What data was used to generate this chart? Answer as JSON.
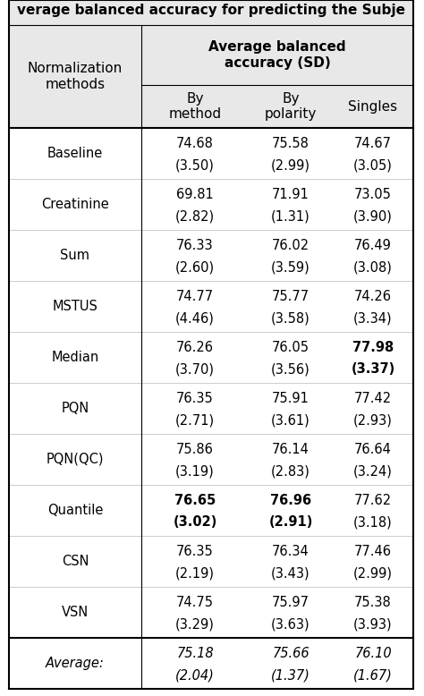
{
  "title": "verage balanced accuracy for predicting the Subje",
  "header_main": "Average balanced\naccuracy (SD)",
  "col0_header": "Normalization\nmethods",
  "subheaders": [
    "By\nmethod",
    "By\npolarity",
    "Singles"
  ],
  "rows": [
    {
      "label": "Baseline",
      "values": [
        "74.68",
        "75.58",
        "74.67"
      ],
      "sd": [
        "(3.50)",
        "(2.99)",
        "(3.05)"
      ],
      "bold": [
        false,
        false,
        false
      ],
      "bold_sd": [
        false,
        false,
        false
      ],
      "italic": false
    },
    {
      "label": "Creatinine",
      "values": [
        "69.81",
        "71.91",
        "73.05"
      ],
      "sd": [
        "(2.82)",
        "(1.31)",
        "(3.90)"
      ],
      "bold": [
        false,
        false,
        false
      ],
      "bold_sd": [
        false,
        false,
        false
      ],
      "italic": false
    },
    {
      "label": "Sum",
      "values": [
        "76.33",
        "76.02",
        "76.49"
      ],
      "sd": [
        "(2.60)",
        "(3.59)",
        "(3.08)"
      ],
      "bold": [
        false,
        false,
        false
      ],
      "bold_sd": [
        false,
        false,
        false
      ],
      "italic": false
    },
    {
      "label": "MSTUS",
      "values": [
        "74.77",
        "75.77",
        "74.26"
      ],
      "sd": [
        "(4.46)",
        "(3.58)",
        "(3.34)"
      ],
      "bold": [
        false,
        false,
        false
      ],
      "bold_sd": [
        false,
        false,
        false
      ],
      "italic": false
    },
    {
      "label": "Median",
      "values": [
        "76.26",
        "76.05",
        "77.98"
      ],
      "sd": [
        "(3.70)",
        "(3.56)",
        "(3.37)"
      ],
      "bold": [
        false,
        false,
        true
      ],
      "bold_sd": [
        false,
        false,
        true
      ],
      "italic": false
    },
    {
      "label": "PQN",
      "values": [
        "76.35",
        "75.91",
        "77.42"
      ],
      "sd": [
        "(2.71)",
        "(3.61)",
        "(2.93)"
      ],
      "bold": [
        false,
        false,
        false
      ],
      "bold_sd": [
        false,
        false,
        false
      ],
      "italic": false
    },
    {
      "label": "PQN(QC)",
      "values": [
        "75.86",
        "76.14",
        "76.64"
      ],
      "sd": [
        "(3.19)",
        "(2.83)",
        "(3.24)"
      ],
      "bold": [
        false,
        false,
        false
      ],
      "bold_sd": [
        false,
        false,
        false
      ],
      "italic": false
    },
    {
      "label": "Quantile",
      "values": [
        "76.65",
        "76.96",
        "77.62"
      ],
      "sd": [
        "(3.02)",
        "(2.91)",
        "(3.18)"
      ],
      "bold": [
        true,
        true,
        false
      ],
      "bold_sd": [
        true,
        true,
        false
      ],
      "italic": false
    },
    {
      "label": "CSN",
      "values": [
        "76.35",
        "76.34",
        "77.46"
      ],
      "sd": [
        "(2.19)",
        "(3.43)",
        "(2.99)"
      ],
      "bold": [
        false,
        false,
        false
      ],
      "bold_sd": [
        false,
        false,
        false
      ],
      "italic": false
    },
    {
      "label": "VSN",
      "values": [
        "74.75",
        "75.97",
        "75.38"
      ],
      "sd": [
        "(3.29)",
        "(3.63)",
        "(3.93)"
      ],
      "bold": [
        false,
        false,
        false
      ],
      "bold_sd": [
        false,
        false,
        false
      ],
      "italic": false
    },
    {
      "label": "Average:",
      "values": [
        "75.18",
        "75.66",
        "76.10"
      ],
      "sd": [
        "(2.04)",
        "(1.37)",
        "(1.67)"
      ],
      "bold": [
        false,
        false,
        false
      ],
      "bold_sd": [
        false,
        false,
        false
      ],
      "italic": true
    }
  ],
  "bg_color": "#ffffff",
  "header_bg": "#e8e8e8",
  "text_color": "#000000",
  "font_size": 10.5,
  "header_font_size": 11
}
